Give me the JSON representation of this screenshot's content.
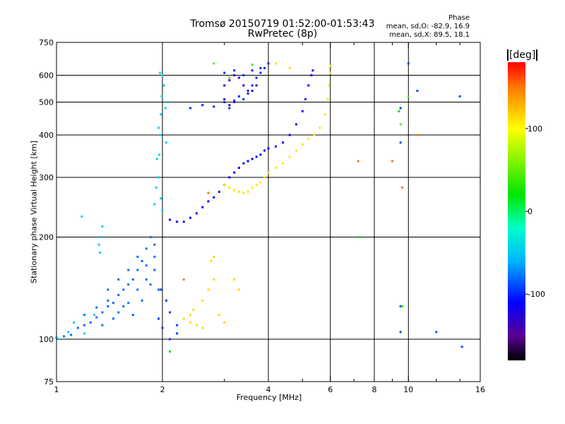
{
  "chart_data": {
    "type": "scatter",
    "title": "Tromsø 20150719 01:52:00-01:53:43",
    "subtitle": "RwPretec (8p)",
    "stats": {
      "heading": "Phase",
      "line_o": "mean, sd,O: -82.9, 16.9",
      "line_x": "mean, sd,X:  89.5, 18.1"
    },
    "xlabel": "Frequency [MHz]",
    "ylabel": "Stationary phase Virtual Height [km]",
    "x_scale": "log",
    "y_scale": "log",
    "xlim": [
      1,
      16
    ],
    "ylim": [
      75,
      750
    ],
    "x_ticks": [
      1,
      2,
      4,
      6,
      8,
      10,
      16
    ],
    "x_tick_labels": [
      "1",
      "2",
      "4",
      "6",
      "8",
      "10",
      "16"
    ],
    "x_minor_ticks": [
      3,
      5,
      7,
      9,
      12,
      14
    ],
    "y_ticks": [
      75,
      100,
      200,
      300,
      400,
      500,
      600,
      750
    ],
    "y_tick_labels": [
      "75",
      "100",
      "200",
      "300",
      "400",
      "500",
      "600",
      "750"
    ],
    "x_gridlines": [
      2,
      4,
      6,
      8,
      10
    ],
    "y_gridlines": [
      100,
      200,
      300,
      400,
      500,
      600
    ],
    "grid": true,
    "colorbar": {
      "unit": "[deg]",
      "range": [
        -180,
        180
      ],
      "ticks": [
        100,
        0,
        -100
      ],
      "tick_labels": [
        "100",
        "0",
        "-100"
      ],
      "position": "right"
    },
    "series": [
      {
        "color_deg": -80,
        "points": [
          [
            1.0,
            101
          ],
          [
            1.05,
            102
          ],
          [
            1.1,
            103
          ],
          [
            1.15,
            108
          ],
          [
            1.2,
            110
          ],
          [
            1.25,
            112
          ],
          [
            1.3,
            116
          ],
          [
            1.35,
            120
          ],
          [
            1.4,
            125
          ],
          [
            1.45,
            128
          ],
          [
            1.5,
            135
          ],
          [
            1.55,
            140
          ],
          [
            1.6,
            145
          ],
          [
            1.65,
            150
          ],
          [
            1.7,
            160
          ],
          [
            1.75,
            170
          ],
          [
            1.8,
            185
          ],
          [
            1.85,
            200
          ],
          [
            1.9,
            190
          ],
          [
            1.2,
            118
          ],
          [
            1.3,
            124
          ],
          [
            1.4,
            130
          ],
          [
            1.5,
            120
          ],
          [
            1.6,
            128
          ],
          [
            1.7,
            140
          ],
          [
            1.8,
            150
          ],
          [
            1.9,
            160
          ],
          [
            1.95,
            140
          ],
          [
            1.5,
            150
          ],
          [
            1.6,
            160
          ],
          [
            1.7,
            175
          ],
          [
            1.8,
            165
          ],
          [
            1.4,
            140
          ],
          [
            1.35,
            110
          ],
          [
            1.45,
            115
          ],
          [
            1.55,
            125
          ],
          [
            1.65,
            118
          ],
          [
            1.75,
            130
          ],
          [
            1.85,
            145
          ],
          [
            1.9,
            175
          ]
        ]
      },
      {
        "color_deg": -45,
        "points": [
          [
            1.02,
            100
          ],
          [
            1.08,
            105
          ],
          [
            1.12,
            112
          ],
          [
            1.2,
            104
          ],
          [
            1.28,
            118
          ],
          [
            1.32,
            190
          ],
          [
            1.33,
            200
          ],
          [
            1.35,
            215
          ],
          [
            1.33,
            180
          ],
          [
            1.18,
            230
          ],
          [
            1.9,
            250
          ],
          [
            1.95,
            300
          ],
          [
            1.96,
            350
          ],
          [
            1.97,
            400
          ],
          [
            1.98,
            460
          ],
          [
            1.99,
            520
          ],
          [
            2.0,
            600
          ],
          [
            2.02,
            560
          ],
          [
            2.04,
            480
          ],
          [
            1.95,
            420
          ],
          [
            1.93,
            340
          ],
          [
            1.92,
            280
          ],
          [
            1.98,
            260
          ],
          [
            2.0,
            240
          ],
          [
            2.05,
            380
          ],
          [
            2.06,
            500
          ],
          [
            1.97,
            610
          ]
        ]
      },
      {
        "color_deg": -110,
        "points": [
          [
            2.1,
            225
          ],
          [
            2.2,
            222
          ],
          [
            2.3,
            222
          ],
          [
            2.4,
            228
          ],
          [
            2.5,
            235
          ],
          [
            2.6,
            245
          ],
          [
            2.7,
            255
          ],
          [
            2.8,
            262
          ],
          [
            2.9,
            272
          ],
          [
            3.0,
            285
          ],
          [
            3.1,
            300
          ],
          [
            3.2,
            310
          ],
          [
            3.3,
            320
          ],
          [
            3.4,
            330
          ],
          [
            3.5,
            335
          ],
          [
            3.6,
            340
          ],
          [
            3.7,
            345
          ],
          [
            3.8,
            350
          ],
          [
            3.9,
            360
          ],
          [
            4.0,
            365
          ],
          [
            4.2,
            370
          ],
          [
            4.4,
            380
          ],
          [
            4.6,
            400
          ],
          [
            4.8,
            430
          ],
          [
            5.0,
            470
          ],
          [
            5.1,
            510
          ],
          [
            5.2,
            560
          ],
          [
            5.3,
            600
          ],
          [
            5.35,
            620
          ]
        ]
      },
      {
        "color_deg": -100,
        "points": [
          [
            2.4,
            480
          ],
          [
            2.6,
            490
          ],
          [
            2.8,
            485
          ],
          [
            3.0,
            500
          ],
          [
            3.1,
            480
          ],
          [
            3.2,
            500
          ],
          [
            3.3,
            520
          ],
          [
            3.4,
            510
          ],
          [
            3.5,
            540
          ],
          [
            3.6,
            560
          ],
          [
            3.7,
            590
          ],
          [
            3.8,
            610
          ],
          [
            3.9,
            630
          ],
          [
            4.0,
            650
          ],
          [
            3.0,
            610
          ],
          [
            3.2,
            620
          ],
          [
            3.4,
            600
          ],
          [
            3.6,
            620
          ],
          [
            3.8,
            630
          ]
        ]
      },
      {
        "color_deg": -130,
        "points": [
          [
            3.0,
            560
          ],
          [
            3.1,
            580
          ],
          [
            3.2,
            600
          ],
          [
            3.3,
            590
          ],
          [
            3.4,
            560
          ],
          [
            3.5,
            530
          ],
          [
            3.6,
            540
          ],
          [
            3.7,
            560
          ],
          [
            3.0,
            510
          ],
          [
            3.1,
            490
          ],
          [
            3.2,
            505
          ]
        ]
      },
      {
        "color_deg": 110,
        "points": [
          [
            3.0,
            285
          ],
          [
            3.1,
            280
          ],
          [
            3.2,
            275
          ],
          [
            3.3,
            272
          ],
          [
            3.4,
            270
          ],
          [
            3.5,
            272
          ],
          [
            3.6,
            280
          ],
          [
            3.7,
            285
          ],
          [
            3.8,
            290
          ],
          [
            3.9,
            300
          ],
          [
            4.0,
            310
          ],
          [
            4.2,
            320
          ],
          [
            4.4,
            330
          ],
          [
            4.6,
            345
          ],
          [
            4.8,
            360
          ],
          [
            5.0,
            375
          ],
          [
            5.2,
            390
          ],
          [
            5.4,
            400
          ],
          [
            5.6,
            420
          ],
          [
            5.8,
            460
          ],
          [
            5.9,
            510
          ],
          [
            5.95,
            560
          ],
          [
            6.0,
            610
          ],
          [
            6.02,
            640
          ],
          [
            4.2,
            650
          ],
          [
            4.6,
            630
          ]
        ]
      },
      {
        "color_deg": 115,
        "points": [
          [
            2.3,
            115
          ],
          [
            2.4,
            112
          ],
          [
            2.5,
            110
          ],
          [
            2.6,
            130
          ],
          [
            2.7,
            140
          ],
          [
            2.8,
            150
          ],
          [
            2.75,
            170
          ],
          [
            2.8,
            175
          ],
          [
            2.6,
            108
          ],
          [
            2.9,
            118
          ],
          [
            3.0,
            112
          ],
          [
            3.2,
            150
          ],
          [
            3.3,
            140
          ],
          [
            2.4,
            118
          ],
          [
            2.45,
            122
          ]
        ]
      },
      {
        "color_deg": -95,
        "points": [
          [
            1.98,
            140
          ],
          [
            2.05,
            130
          ],
          [
            2.1,
            120
          ],
          [
            2.2,
            110
          ],
          [
            1.95,
            115
          ],
          [
            2.0,
            108
          ],
          [
            2.1,
            100
          ],
          [
            2.2,
            104
          ]
        ]
      },
      {
        "color_deg": -90,
        "points": [
          [
            9.5,
            480
          ],
          [
            10.0,
            650
          ],
          [
            10.6,
            540
          ],
          [
            14.0,
            520
          ],
          [
            9.5,
            380
          ],
          [
            12.0,
            105
          ],
          [
            14.2,
            95
          ],
          [
            9.5,
            105
          ],
          [
            9.5,
            125
          ]
        ]
      },
      {
        "color_deg": 45,
        "points": [
          [
            2.8,
            650
          ],
          [
            3.1,
            590
          ],
          [
            3.6,
            645
          ],
          [
            10.0,
            520
          ],
          [
            9.5,
            430
          ]
        ]
      },
      {
        "color_deg": 150,
        "points": [
          [
            2.7,
            270
          ],
          [
            7.2,
            335
          ],
          [
            9.0,
            335
          ],
          [
            9.6,
            280
          ],
          [
            10.6,
            400
          ],
          [
            2.3,
            150
          ]
        ]
      },
      {
        "color_deg": 20,
        "points": [
          [
            7.2,
            200
          ],
          [
            9.6,
            125
          ],
          [
            9.4,
            470
          ],
          [
            2.1,
            92
          ]
        ]
      }
    ]
  }
}
